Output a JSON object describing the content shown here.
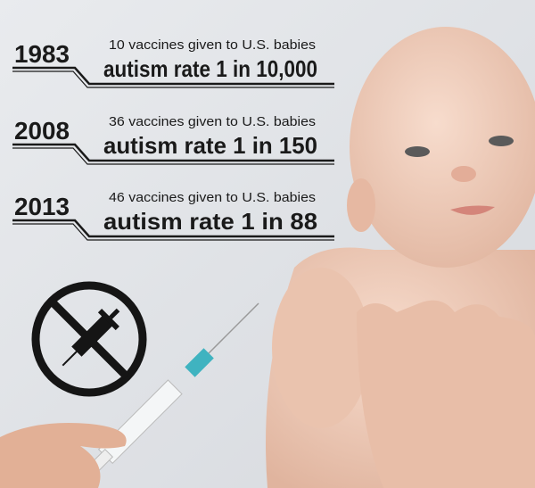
{
  "entries": [
    {
      "year": "1983",
      "vaccines": "10 vaccines given to U.S. babies",
      "autism": "autism rate 1 in 10,000"
    },
    {
      "year": "2008",
      "vaccines": "36 vaccines given to U.S. babies",
      "autism": "autism rate 1 in 150"
    },
    {
      "year": "2013",
      "vaccines": "46 vaccines given to U.S. babies",
      "autism": "autism rate 1 in 88"
    }
  ]
}
